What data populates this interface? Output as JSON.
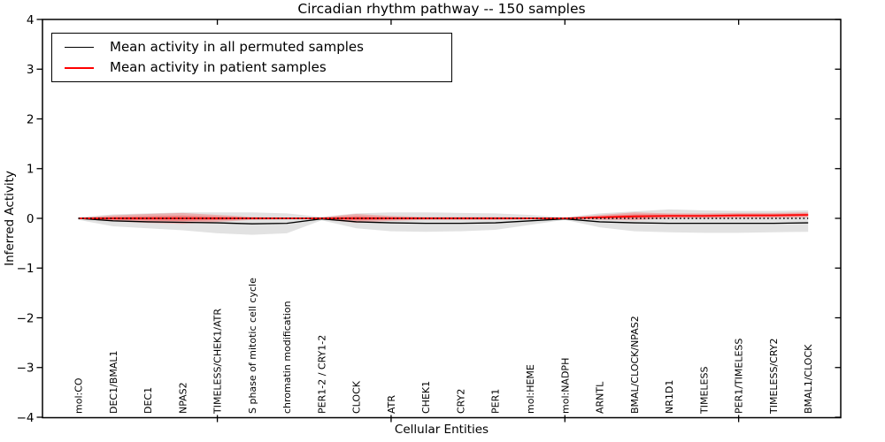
{
  "chart_data": {
    "type": "area",
    "title": "Circadian rhythm pathway -- 150 samples",
    "xlabel": "Cellular Entities",
    "ylabel": "Inferred Activity",
    "ylim": [
      -4,
      4
    ],
    "ytick_labels": [
      "4",
      "3",
      "2",
      "1",
      "0",
      "−1",
      "−2",
      "−3",
      "−4"
    ],
    "ytick_values": [
      4,
      3,
      2,
      1,
      0,
      -1,
      -2,
      -3,
      -4
    ],
    "xtick_indices": [
      4,
      9,
      14,
      19
    ],
    "grid": false,
    "legend_position": "upper left",
    "legend": [
      {
        "label": "Mean activity in all permuted samples",
        "color": "#000000"
      },
      {
        "label": "Mean activity in patient samples",
        "color": "#ff0000"
      }
    ],
    "categories": [
      "mol:CO",
      "DEC1/BMAL1",
      "DEC1",
      "NPAS2",
      "TIMELESS/CHEK1/ATR",
      "S phase of mitotic cell cycle",
      "chromatin modification",
      "PER1-2 / CRY1-2",
      "CLOCK",
      "ATR",
      "CHEK1",
      "CRY2",
      "PER1",
      "mol:HEME",
      "mol:NADPH",
      "ARNTL",
      "BMAL/CLOCK/NPAS2",
      "NR1D1",
      "TIMELESS",
      "PER1/TIMELESS",
      "TIMELESS/CRY2",
      "BMAL1/CLOCK"
    ],
    "series": [
      {
        "name": "permuted-range-band",
        "type": "band",
        "color": "rgba(0,0,0,0.115)",
        "upper": [
          0.02,
          0.08,
          0.1,
          0.12,
          0.12,
          0.12,
          0.1,
          0.03,
          0.1,
          0.12,
          0.12,
          0.11,
          0.1,
          0.07,
          0.02,
          0.1,
          0.14,
          0.18,
          0.16,
          0.15,
          0.15,
          0.16
        ],
        "lower": [
          -0.03,
          -0.16,
          -0.2,
          -0.24,
          -0.3,
          -0.33,
          -0.3,
          -0.04,
          -0.2,
          -0.26,
          -0.27,
          -0.26,
          -0.23,
          -0.13,
          -0.03,
          -0.18,
          -0.26,
          -0.28,
          -0.29,
          -0.29,
          -0.28,
          -0.27
        ]
      },
      {
        "name": "patient-range-band",
        "type": "band",
        "color": "rgba(255,0,0,0.22)",
        "upper": [
          0.01,
          0.06,
          0.09,
          0.11,
          0.07,
          0.03,
          0.02,
          0.02,
          0.09,
          0.05,
          0.03,
          0.03,
          0.03,
          0.02,
          0.01,
          0.07,
          0.12,
          0.1,
          0.1,
          0.11,
          0.11,
          0.12
        ],
        "lower": [
          -0.01,
          -0.06,
          -0.09,
          -0.11,
          -0.07,
          -0.03,
          -0.02,
          -0.02,
          -0.09,
          -0.05,
          -0.03,
          -0.03,
          -0.03,
          -0.02,
          -0.01,
          -0.03,
          -0.04,
          0.0,
          0.0,
          0.01,
          0.01,
          0.02
        ]
      },
      {
        "name": "patient-range-inner-band",
        "type": "band",
        "color": "rgba(255,0,0,0.28)",
        "upper": [
          0.005,
          0.03,
          0.045,
          0.055,
          0.035,
          0.015,
          0.01,
          0.01,
          0.045,
          0.025,
          0.015,
          0.015,
          0.015,
          0.01,
          0.005,
          0.045,
          0.08,
          0.075,
          0.075,
          0.085,
          0.085,
          0.095
        ],
        "lower": [
          -0.005,
          -0.03,
          -0.045,
          -0.055,
          -0.035,
          -0.015,
          -0.01,
          -0.01,
          -0.045,
          -0.025,
          -0.015,
          -0.015,
          -0.015,
          -0.01,
          -0.005,
          -0.005,
          0.0,
          0.025,
          0.025,
          0.035,
          0.035,
          0.045
        ]
      },
      {
        "name": "permuted-mean-line",
        "type": "line",
        "color": "#000000",
        "width": 1.3,
        "values": [
          0.0,
          -0.05,
          -0.07,
          -0.08,
          -0.09,
          -0.11,
          -0.1,
          -0.01,
          -0.07,
          -0.09,
          -0.1,
          -0.1,
          -0.09,
          -0.05,
          -0.01,
          -0.07,
          -0.09,
          -0.1,
          -0.1,
          -0.1,
          -0.1,
          -0.09
        ]
      },
      {
        "name": "patient-mean-line",
        "type": "line",
        "color": "#ff0000",
        "width": 1.7,
        "values": [
          0.0,
          0.0,
          0.0,
          0.0,
          0.0,
          0.0,
          0.0,
          0.0,
          0.0,
          0.0,
          0.0,
          0.0,
          0.0,
          0.0,
          0.0,
          0.02,
          0.04,
          0.05,
          0.05,
          0.06,
          0.06,
          0.07
        ]
      },
      {
        "name": "zero-reference-line",
        "type": "line",
        "color": "#000000",
        "width": 1.5,
        "dash": "1.7 2.8",
        "values": [
          0,
          0,
          0,
          0,
          0,
          0,
          0,
          0,
          0,
          0,
          0,
          0,
          0,
          0,
          0,
          0,
          0,
          0,
          0,
          0,
          0,
          0
        ]
      }
    ]
  }
}
